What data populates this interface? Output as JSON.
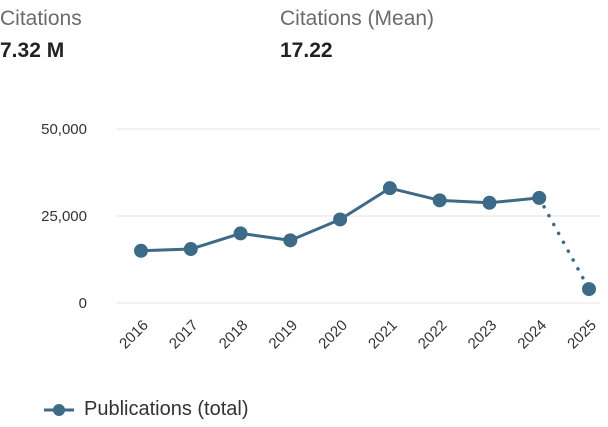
{
  "stats": [
    {
      "label": "Citations",
      "value": "7.32 M"
    },
    {
      "label": "Citations (Mean)",
      "value": "17.22"
    }
  ],
  "colors": {
    "series": "#3d6a86",
    "grid": "#e3e3e3",
    "tick_text": "#333333"
  },
  "chart_data": {
    "type": "line",
    "title": "",
    "xlabel": "",
    "ylabel": "",
    "x": [
      "2016",
      "2017",
      "2018",
      "2019",
      "2020",
      "2021",
      "2022",
      "2023",
      "2024",
      "2025"
    ],
    "series": [
      {
        "name": "Publications (total)",
        "values": [
          15000,
          15500,
          20000,
          18000,
          24000,
          33000,
          29500,
          28800,
          30200,
          4000
        ],
        "dotted_last_segment": true
      }
    ],
    "ylim": [
      0,
      50000
    ],
    "yticks": [
      0,
      25000,
      50000
    ],
    "ytick_labels": [
      "0",
      "25,000",
      "50,000"
    ],
    "grid": true,
    "legend": "bottom-left"
  }
}
